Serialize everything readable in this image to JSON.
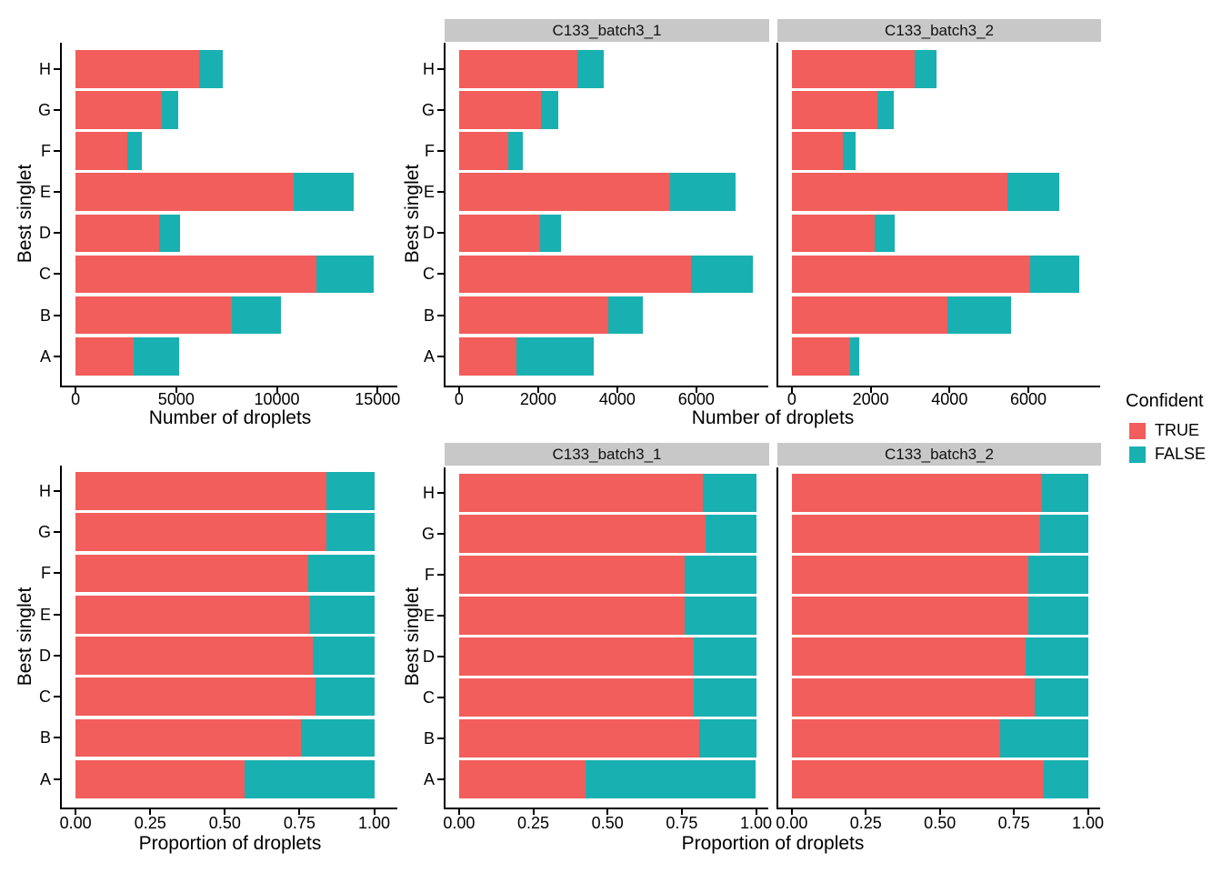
{
  "legend": {
    "title": "Confident",
    "items": [
      {
        "label": "TRUE",
        "color": "#F25E5B"
      },
      {
        "label": "FALSE",
        "color": "#19B0B2"
      }
    ]
  },
  "colors": {
    "true_fill": "#F25E5B",
    "false_fill": "#19B0B2",
    "strip_background": "#C8C8C8",
    "axis": "#000000",
    "background": "#FFFFFF"
  },
  "chart_data": [
    {
      "type": "bar",
      "orientation": "horizontal",
      "stacked": true,
      "xlabel": "Number of droplets",
      "ylabel": "Best singlet",
      "category_order": "top-to-bottom",
      "categories": [
        "H",
        "G",
        "F",
        "E",
        "D",
        "C",
        "B",
        "A"
      ],
      "xtick_values": [
        0,
        5000,
        10000,
        15000
      ],
      "xtick_labels": [
        "0",
        "5000",
        "10000",
        "15000"
      ],
      "xlim": [
        0,
        15540
      ],
      "grid": false,
      "facets": [
        {
          "label": "",
          "series": [
            {
              "name": "TRUE",
              "values": [
                6150,
                4280,
                2550,
                10850,
                4130,
                11950,
                7750,
                2900
              ]
            },
            {
              "name": "FALSE",
              "values": [
                1150,
                820,
                720,
                2950,
                1070,
                2850,
                2450,
                2250
              ]
            }
          ]
        }
      ]
    },
    {
      "type": "bar",
      "orientation": "horizontal",
      "stacked": true,
      "xlabel": "Number of droplets",
      "ylabel": "Best singlet",
      "category_order": "top-to-bottom",
      "categories": [
        "H",
        "G",
        "F",
        "E",
        "D",
        "C",
        "B",
        "A"
      ],
      "xtick_values": [
        0,
        2000,
        4000,
        6000
      ],
      "xtick_labels": [
        "0",
        "2000",
        "4000",
        "6000"
      ],
      "xlim": [
        0,
        7790
      ],
      "grid": false,
      "facets": [
        {
          "label": "C133_batch3_1",
          "series": [
            {
              "name": "TRUE",
              "values": [
                3000,
                2080,
                1240,
                5340,
                2050,
                5860,
                3780,
                1450
              ]
            },
            {
              "name": "FALSE",
              "values": [
                660,
                420,
                380,
                1660,
                530,
                1560,
                860,
                1950
              ]
            }
          ]
        },
        {
          "label": "C133_batch3_2",
          "series": [
            {
              "name": "TRUE",
              "values": [
                3110,
                2170,
                1300,
                5470,
                2100,
                6040,
                3950,
                1470
              ]
            },
            {
              "name": "FALSE",
              "values": [
                550,
                405,
                320,
                1320,
                500,
                1260,
                1600,
                250
              ]
            }
          ]
        }
      ]
    },
    {
      "type": "bar",
      "orientation": "horizontal",
      "stacked": true,
      "xlabel": "Proportion of droplets",
      "ylabel": "Best singlet",
      "category_order": "top-to-bottom",
      "categories": [
        "H",
        "G",
        "F",
        "E",
        "D",
        "C",
        "B",
        "A"
      ],
      "xtick_values": [
        0,
        0.25,
        0.5,
        0.75,
        1.0
      ],
      "xtick_labels": [
        "0.00",
        "0.25",
        "0.50",
        "0.75",
        "1.00"
      ],
      "xlim": [
        0,
        1.05
      ],
      "grid": false,
      "facets": [
        {
          "label": "",
          "series": [
            {
              "name": "TRUE",
              "values": [
                0.84,
                0.84,
                0.78,
                0.785,
                0.795,
                0.805,
                0.755,
                0.565
              ]
            },
            {
              "name": "FALSE",
              "values": [
                0.16,
                0.16,
                0.22,
                0.215,
                0.205,
                0.195,
                0.245,
                0.435
              ]
            }
          ]
        }
      ]
    },
    {
      "type": "bar",
      "orientation": "horizontal",
      "stacked": true,
      "xlabel": "Proportion of droplets",
      "ylabel": "Best singlet",
      "category_order": "top-to-bottom",
      "categories": [
        "H",
        "G",
        "F",
        "E",
        "D",
        "C",
        "B",
        "A"
      ],
      "xtick_values": [
        0,
        0.25,
        0.5,
        0.75,
        1.0
      ],
      "xtick_labels": [
        "0.00",
        "0.25",
        "0.50",
        "0.75",
        "1.00"
      ],
      "xlim": [
        0,
        1.05
      ],
      "grid": false,
      "facets": [
        {
          "label": "C133_batch3_1",
          "series": [
            {
              "name": "TRUE",
              "values": [
                0.82,
                0.83,
                0.76,
                0.76,
                0.79,
                0.79,
                0.81,
                0.425
              ]
            },
            {
              "name": "FALSE",
              "values": [
                0.18,
                0.17,
                0.24,
                0.24,
                0.21,
                0.21,
                0.19,
                0.575
              ]
            }
          ]
        },
        {
          "label": "C133_batch3_2",
          "series": [
            {
              "name": "TRUE",
              "values": [
                0.845,
                0.84,
                0.8,
                0.8,
                0.79,
                0.82,
                0.705,
                0.85
              ]
            },
            {
              "name": "FALSE",
              "values": [
                0.155,
                0.16,
                0.2,
                0.2,
                0.21,
                0.18,
                0.295,
                0.15
              ]
            }
          ]
        }
      ]
    }
  ]
}
